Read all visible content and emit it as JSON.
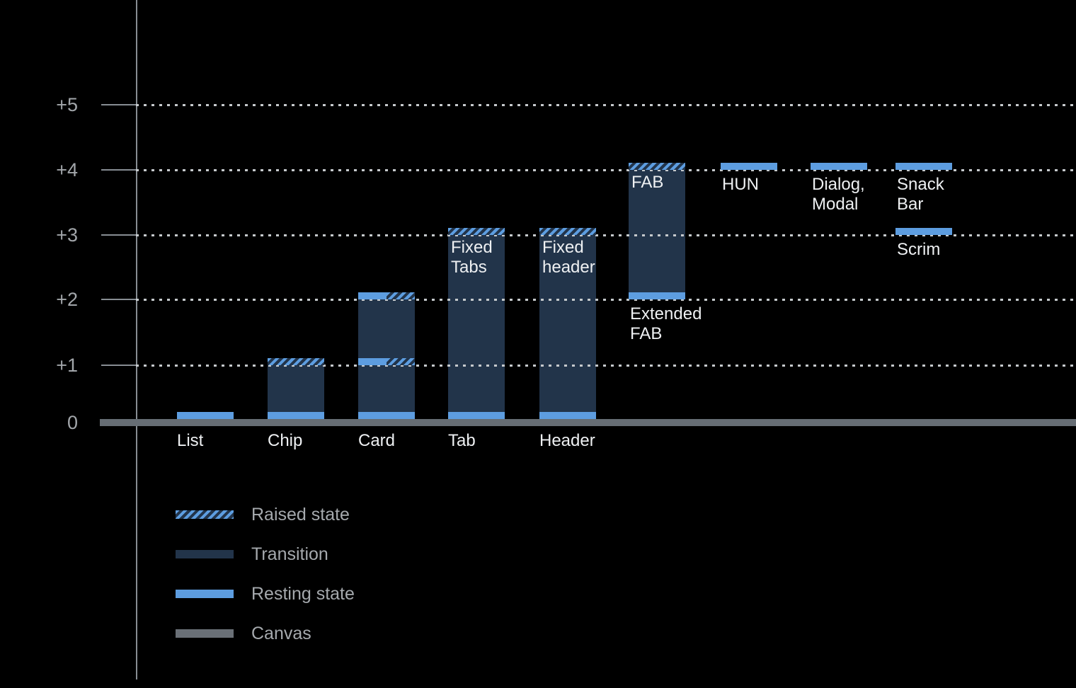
{
  "colors": {
    "background": "#000000",
    "transition": "#22344a",
    "resting": "#5d9de0",
    "canvas": "#666d74",
    "axis": "#878d93",
    "grid_dots": "#c6cacd",
    "tick_label": "#a2a6aa",
    "bar_label": "#eef0f2",
    "legend_label": "#a5a9ad"
  },
  "y_axis": {
    "tick_labels": [
      "+5",
      "+4",
      "+3",
      "+2",
      "+1",
      "0"
    ]
  },
  "chart_data": {
    "type": "bar",
    "subtype": "material-elevation-diagram",
    "title": "",
    "xlabel": "",
    "ylabel": "",
    "ylim": [
      0,
      5
    ],
    "y_ticks": [
      0,
      1,
      2,
      3,
      4,
      5
    ],
    "y_tick_labels": [
      "0",
      "+1",
      "+2",
      "+3",
      "+4",
      "+5"
    ],
    "grid": "horizontal-dotted",
    "legend_position": "bottom-left",
    "legend_entries": [
      "Raised state",
      "Transition",
      "Resting state",
      "Canvas"
    ],
    "components": [
      {
        "name": "list",
        "axis_label": "List",
        "column": 0,
        "transition": null,
        "bands": [
          {
            "kind": "resting",
            "level": 0
          }
        ]
      },
      {
        "name": "chip",
        "axis_label": "Chip",
        "column": 1,
        "transition": {
          "from": 0,
          "to": 1
        },
        "bands": [
          {
            "kind": "resting",
            "level": 0
          },
          {
            "kind": "raised",
            "level": 1
          }
        ]
      },
      {
        "name": "card",
        "axis_label": "Card",
        "column": 2,
        "transition": {
          "from": 0,
          "to": 2
        },
        "bands": [
          {
            "kind": "resting",
            "level": 0
          },
          {
            "kind": "split",
            "level": 1
          },
          {
            "kind": "split",
            "level": 2
          }
        ]
      },
      {
        "name": "tab",
        "axis_label": "Tab",
        "inner_label": "Fixed\nTabs",
        "column": 3,
        "transition": {
          "from": 0,
          "to": 3
        },
        "bands": [
          {
            "kind": "resting",
            "level": 0
          },
          {
            "kind": "raised",
            "level": 3
          }
        ]
      },
      {
        "name": "header",
        "axis_label": "Header",
        "inner_label": "Fixed\nheader",
        "column": 4,
        "transition": {
          "from": 0,
          "to": 3
        },
        "bands": [
          {
            "kind": "resting",
            "level": 0
          },
          {
            "kind": "raised",
            "level": 3
          }
        ]
      },
      {
        "name": "fab",
        "inner_label": "FAB",
        "under_label": "Extended\nFAB",
        "under_label_level": 2,
        "column": 5,
        "transition": {
          "from": 2,
          "to": 4
        },
        "bands": [
          {
            "kind": "resting",
            "level": 2
          },
          {
            "kind": "raised",
            "level": 4
          }
        ]
      },
      {
        "name": "hun",
        "under_label": "HUN",
        "under_label_level": 4,
        "column": 6,
        "transition": null,
        "bands": [
          {
            "kind": "resting",
            "level": 4
          }
        ]
      },
      {
        "name": "dialog-modal",
        "under_label": "Dialog,\nModal",
        "under_label_level": 4,
        "column": 7,
        "transition": null,
        "bands": [
          {
            "kind": "resting",
            "level": 4
          }
        ]
      },
      {
        "name": "snack-bar",
        "under_label": "Snack Bar",
        "under_label_level": 4,
        "column": 8,
        "transition": null,
        "bands": [
          {
            "kind": "resting",
            "level": 4
          }
        ]
      },
      {
        "name": "scrim",
        "under_label": "Scrim",
        "under_label_level": 3,
        "column": 8,
        "transition": null,
        "bands": [
          {
            "kind": "resting",
            "level": 3
          }
        ]
      }
    ]
  },
  "legend": {
    "items": [
      {
        "label": "Raised state",
        "swatch": "raised"
      },
      {
        "label": "Transition",
        "swatch": "transition"
      },
      {
        "label": "Resting state",
        "swatch": "resting"
      },
      {
        "label": "Canvas",
        "swatch": "canvas"
      }
    ]
  }
}
